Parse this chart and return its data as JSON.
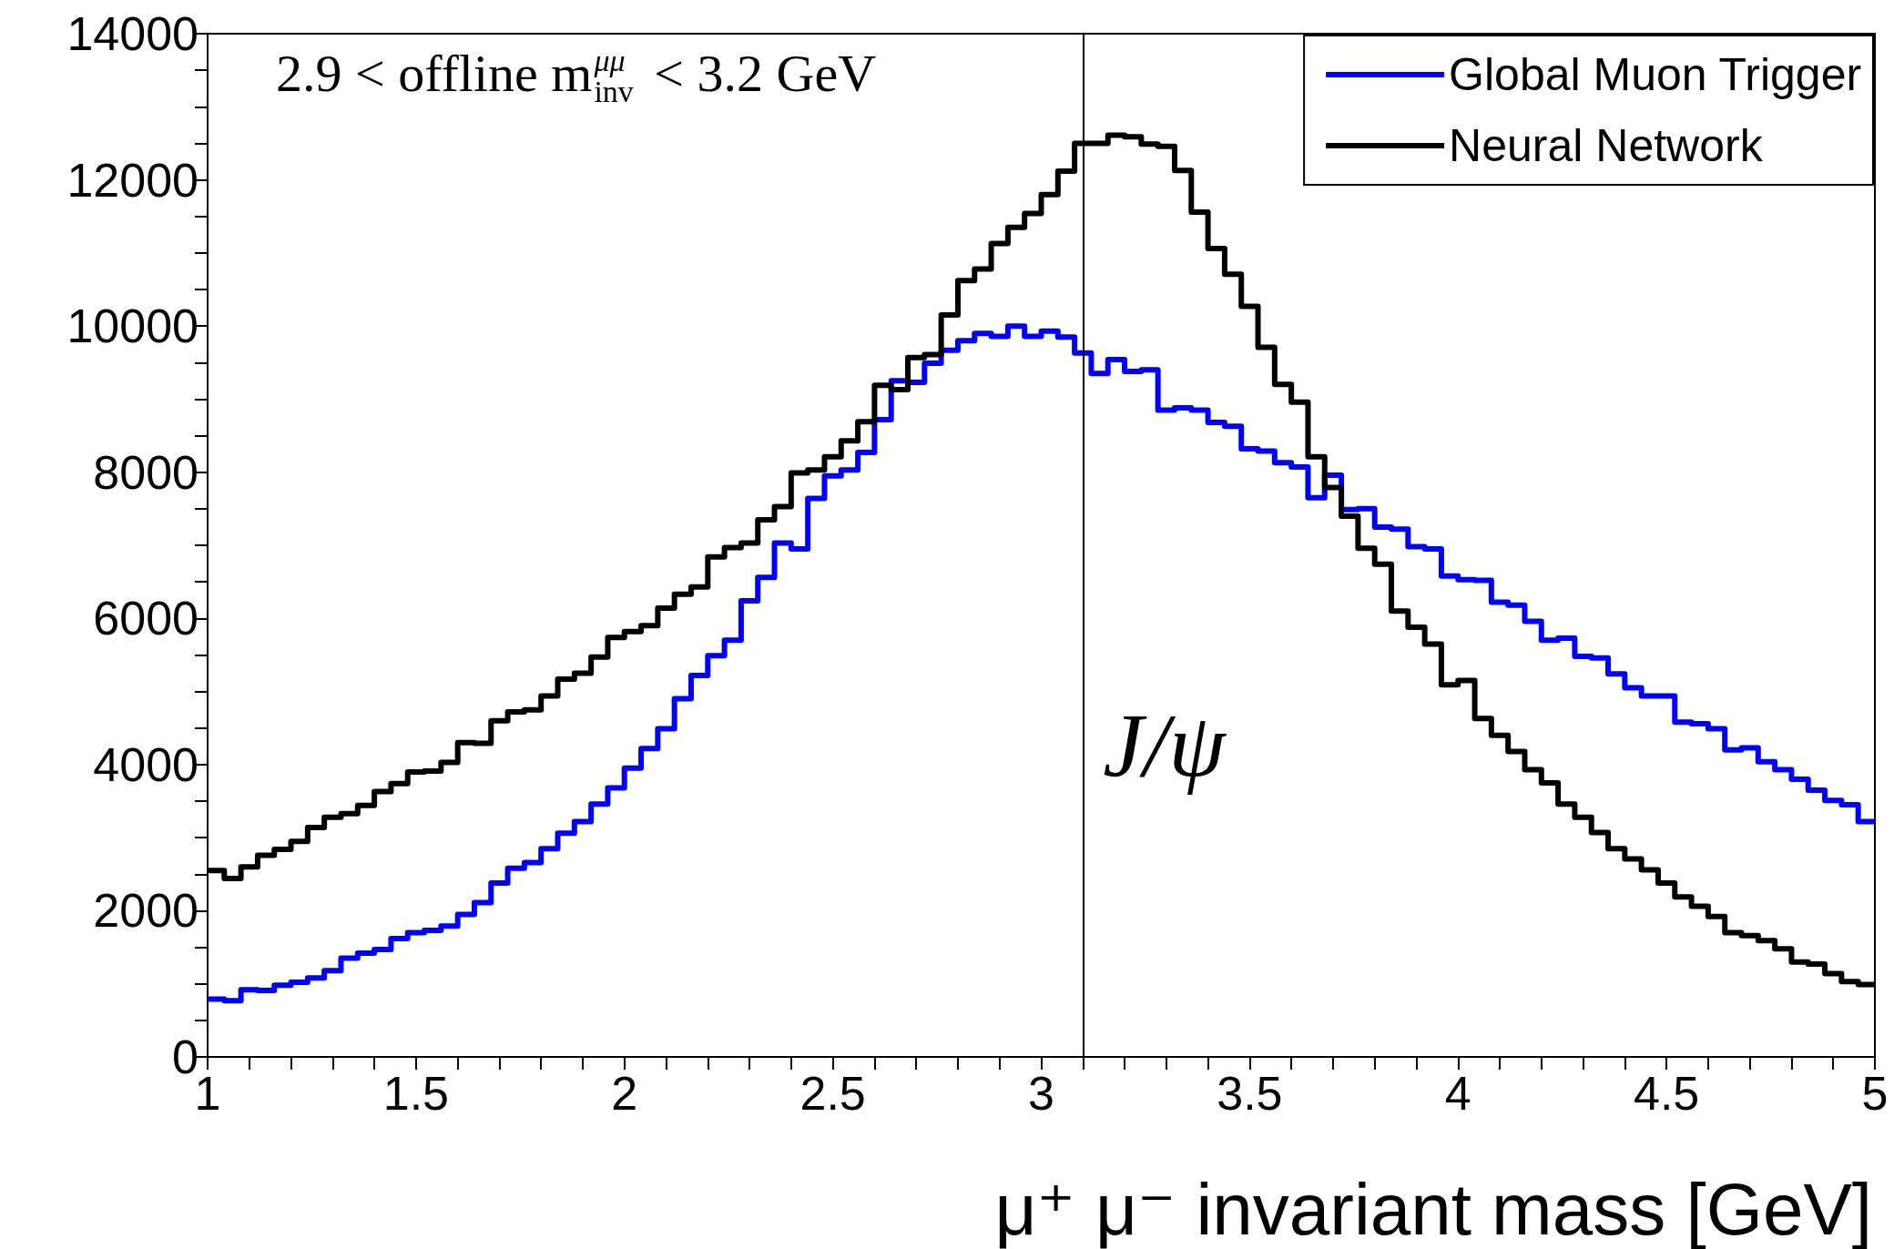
{
  "chart_data": {
    "type": "histogram",
    "xlabel": "μ⁺ μ⁻ invariant mass [GeV]",
    "annotations": [
      "2.9 < offline m$^{μμ}$$_{inv}$ < 3.2 GeV"
    ],
    "bins": [
      1,
      1.04,
      1.08,
      1.12,
      1.16,
      1.2,
      1.24,
      1.28,
      1.32,
      1.36,
      1.4,
      1.44,
      1.48,
      1.52,
      1.56,
      1.6,
      1.64,
      1.68,
      1.72,
      1.76,
      1.8,
      1.84,
      1.88,
      1.92,
      1.96,
      2,
      2.04,
      2.08,
      2.12,
      2.16,
      2.2,
      2.24,
      2.28,
      2.32,
      2.36,
      2.4,
      2.44,
      2.48,
      2.52,
      2.56,
      2.6,
      2.64,
      2.68,
      2.72,
      2.76,
      2.8,
      2.84,
      2.88,
      2.92,
      2.96,
      3,
      3.04,
      3.08,
      3.12,
      3.16,
      3.2,
      3.24,
      3.28,
      3.32,
      3.36,
      3.4,
      3.44,
      3.48,
      3.52,
      3.56,
      3.6,
      3.64,
      3.68,
      3.72,
      3.76,
      3.8,
      3.84,
      3.88,
      3.92,
      3.96,
      4,
      4.04,
      4.08,
      4.12,
      4.16,
      4.2,
      4.24,
      4.28,
      4.32,
      4.36,
      4.4,
      4.44,
      4.48,
      4.52,
      4.56,
      4.6,
      4.64,
      4.68,
      4.72,
      4.76,
      4.8,
      4.84,
      4.88,
      4.92,
      4.96,
      5
    ],
    "series": [
      {
        "name": "Global Muon Trigger",
        "color": "#0000ff",
        "values": [
          790,
          770,
          920,
          910,
          980,
          1020,
          1080,
          1180,
          1350,
          1420,
          1470,
          1620,
          1700,
          1730,
          1790,
          1950,
          2110,
          2380,
          2580,
          2660,
          2850,
          3060,
          3220,
          3460,
          3680,
          3950,
          4220,
          4490,
          4900,
          5220,
          5490,
          5700,
          6240,
          6560,
          7030,
          6950,
          7640,
          7950,
          8030,
          8270,
          8720,
          9250,
          9230,
          9490,
          9670,
          9800,
          9900,
          9860,
          10000,
          9860,
          9930,
          9850,
          9630,
          9350,
          9540,
          9380,
          9400,
          8850,
          8880,
          8850,
          8680,
          8630,
          8320,
          8290,
          8130,
          8070,
          7650,
          7960,
          7490,
          7500,
          7250,
          7220,
          6980,
          6950,
          6580,
          6530,
          6520,
          6220,
          6180,
          5960,
          5700,
          5730,
          5480,
          5460,
          5240,
          5050,
          4940,
          4940,
          4580,
          4560,
          4490,
          4200,
          4230,
          4040,
          3930,
          3800,
          3650,
          3510,
          3450,
          3220
        ]
      },
      {
        "name": "Neural Network",
        "color": "#000000",
        "values": [
          2550,
          2440,
          2600,
          2760,
          2840,
          2950,
          3140,
          3280,
          3330,
          3440,
          3630,
          3740,
          3900,
          3910,
          4030,
          4300,
          4290,
          4600,
          4720,
          4750,
          4940,
          5170,
          5250,
          5470,
          5740,
          5820,
          5900,
          6140,
          6330,
          6430,
          6840,
          6970,
          7030,
          7350,
          7530,
          7990,
          8030,
          8210,
          8430,
          8690,
          9190,
          9130,
          9570,
          9610,
          10150,
          10620,
          10780,
          11130,
          11350,
          11540,
          11800,
          12120,
          12500,
          12500,
          12610,
          12590,
          12490,
          12460,
          12130,
          11560,
          11060,
          10710,
          10270,
          9710,
          9200,
          8960,
          8210,
          7790,
          7400,
          6960,
          6740,
          6100,
          5880,
          5650,
          5090,
          5150,
          4630,
          4400,
          4180,
          3930,
          3750,
          3460,
          3280,
          3070,
          2850,
          2710,
          2560,
          2380,
          2190,
          2060,
          1920,
          1700,
          1660,
          1590,
          1480,
          1300,
          1270,
          1140,
          1030,
          990
        ]
      }
    ],
    "xlim": [
      1,
      5
    ],
    "xticks": [
      1,
      {
        "value": 1.1,
        "label": null
      },
      {
        "value": 1.2,
        "label": null
      },
      {
        "value": 1.3,
        "label": null
      },
      {
        "value": 1.4,
        "label": null
      },
      1.5,
      {
        "value": 1.6,
        "label": null
      },
      {
        "value": 1.7,
        "label": null
      },
      {
        "value": 1.8,
        "label": null
      },
      {
        "value": 1.9,
        "label": null
      },
      2,
      {
        "value": 2.1,
        "label": null
      },
      {
        "value": 2.2,
        "label": null
      },
      {
        "value": 2.3,
        "label": null
      },
      {
        "value": 2.4,
        "label": null
      },
      2.5,
      {
        "value": 2.6,
        "label": null
      },
      {
        "value": 2.7,
        "label": null
      },
      {
        "value": 2.8,
        "label": null
      },
      {
        "value": 2.9,
        "label": null
      },
      3,
      {
        "value": 3.1,
        "label": null
      },
      {
        "value": 3.2,
        "label": null
      },
      {
        "value": 3.3,
        "label": null
      },
      {
        "value": 3.4,
        "label": null
      },
      3.5,
      {
        "value": 3.6,
        "label": null
      },
      {
        "value": 3.7,
        "label": null
      },
      {
        "value": 3.8,
        "label": null
      },
      {
        "value": 3.9,
        "label": null
      },
      4,
      {
        "value": 4.1,
        "label": null
      },
      {
        "value": 4.2,
        "label": null
      },
      {
        "value": 4.3,
        "label": null
      },
      {
        "value": 4.4,
        "label": null
      },
      4.5,
      {
        "value": 4.6,
        "label": null
      },
      {
        "value": 4.7,
        "label": null
      },
      {
        "value": 4.8,
        "label": null
      },
      {
        "value": 4.9,
        "label": null
      },
      5
    ],
    "ylim": [
      0,
      14000
    ],
    "yticks": [
      0,
      {
        "value": 500,
        "label": null
      },
      {
        "value": 1000,
        "label": null
      },
      {
        "value": 1500,
        "label": null
      },
      2000,
      {
        "value": 2500,
        "label": null
      },
      {
        "value": 3000,
        "label": null
      },
      {
        "value": 3500,
        "label": null
      },
      4000,
      {
        "value": 4500,
        "label": null
      },
      {
        "value": 5000,
        "label": null
      },
      {
        "value": 5500,
        "label": null
      },
      6000,
      {
        "value": 6500,
        "label": null
      },
      {
        "value": 7000,
        "label": null
      },
      {
        "value": 7500,
        "label": null
      },
      8000,
      {
        "value": 8500,
        "label": null
      },
      {
        "value": 9000,
        "label": null
      },
      {
        "value": 9500,
        "label": null
      },
      10000,
      {
        "value": 10500,
        "label": null
      },
      {
        "value": 11000,
        "label": null
      },
      {
        "value": 11500,
        "label": null
      },
      12000,
      {
        "value": 12500,
        "label": null
      },
      {
        "value": 13000,
        "label": null
      },
      {
        "value": 13500,
        "label": null
      },
      14000
    ],
    "legend": "top right",
    "ref_lines": [
      {
        "axis": "x",
        "value": 3.1,
        "label": "J/ψ"
      }
    ]
  }
}
